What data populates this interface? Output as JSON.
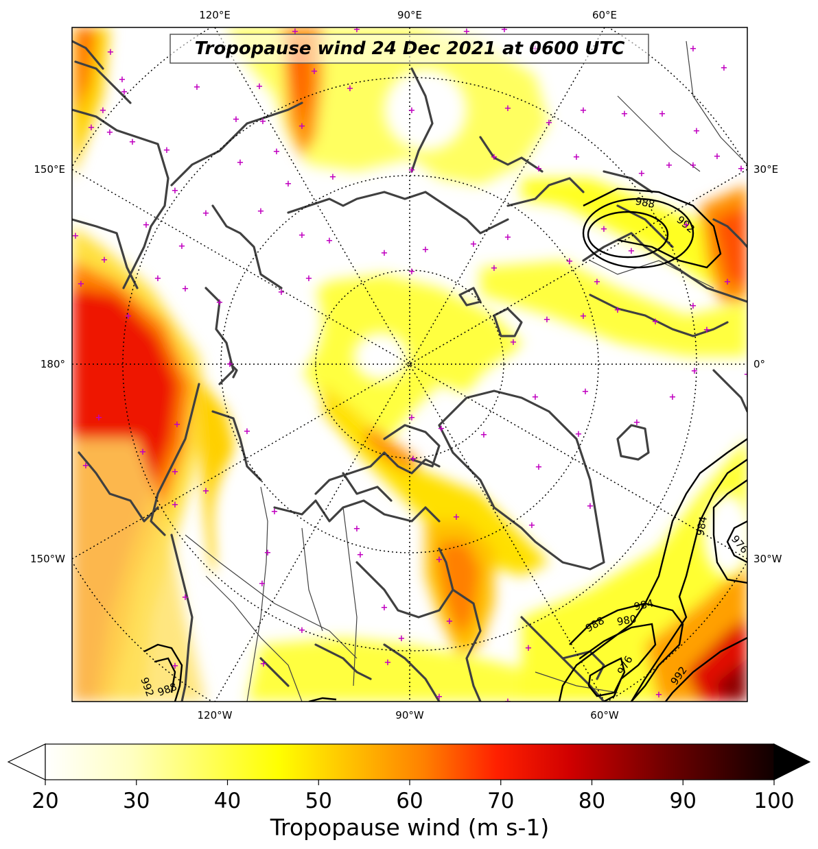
{
  "title": "Tropopause wind 24 Dec 2021 at 0600 UTC",
  "colorbar": {
    "label": "Tropopause wind (m s-1)",
    "ticks": [
      "20",
      "30",
      "40",
      "50",
      "60",
      "70",
      "80",
      "90",
      "100"
    ],
    "min": 20,
    "max": 100,
    "extend": "both",
    "colormap": [
      "#ffffff",
      "#ffff80",
      "#ffff00",
      "#ffcc00",
      "#ff8000",
      "#ff0000",
      "#b00000",
      "#400000",
      "#000000"
    ]
  },
  "map": {
    "projection": "north polar stereographic",
    "top_labels": [
      "120°E",
      "90°E",
      "60°E"
    ],
    "bottom_labels": [
      "120°W",
      "90°W",
      "60°W"
    ],
    "left_labels": [
      "150°E",
      "180°",
      "150°W"
    ],
    "right_labels": [
      "30°E",
      "0°",
      "30°W"
    ]
  },
  "pressure_contours": {
    "units": "hPa",
    "labels": [
      "988",
      "992",
      "984",
      "976",
      "988",
      "984",
      "980",
      "976",
      "992",
      "992",
      "988"
    ]
  },
  "station_marker_color": "#c000c0",
  "coastline_color": "#404040"
}
